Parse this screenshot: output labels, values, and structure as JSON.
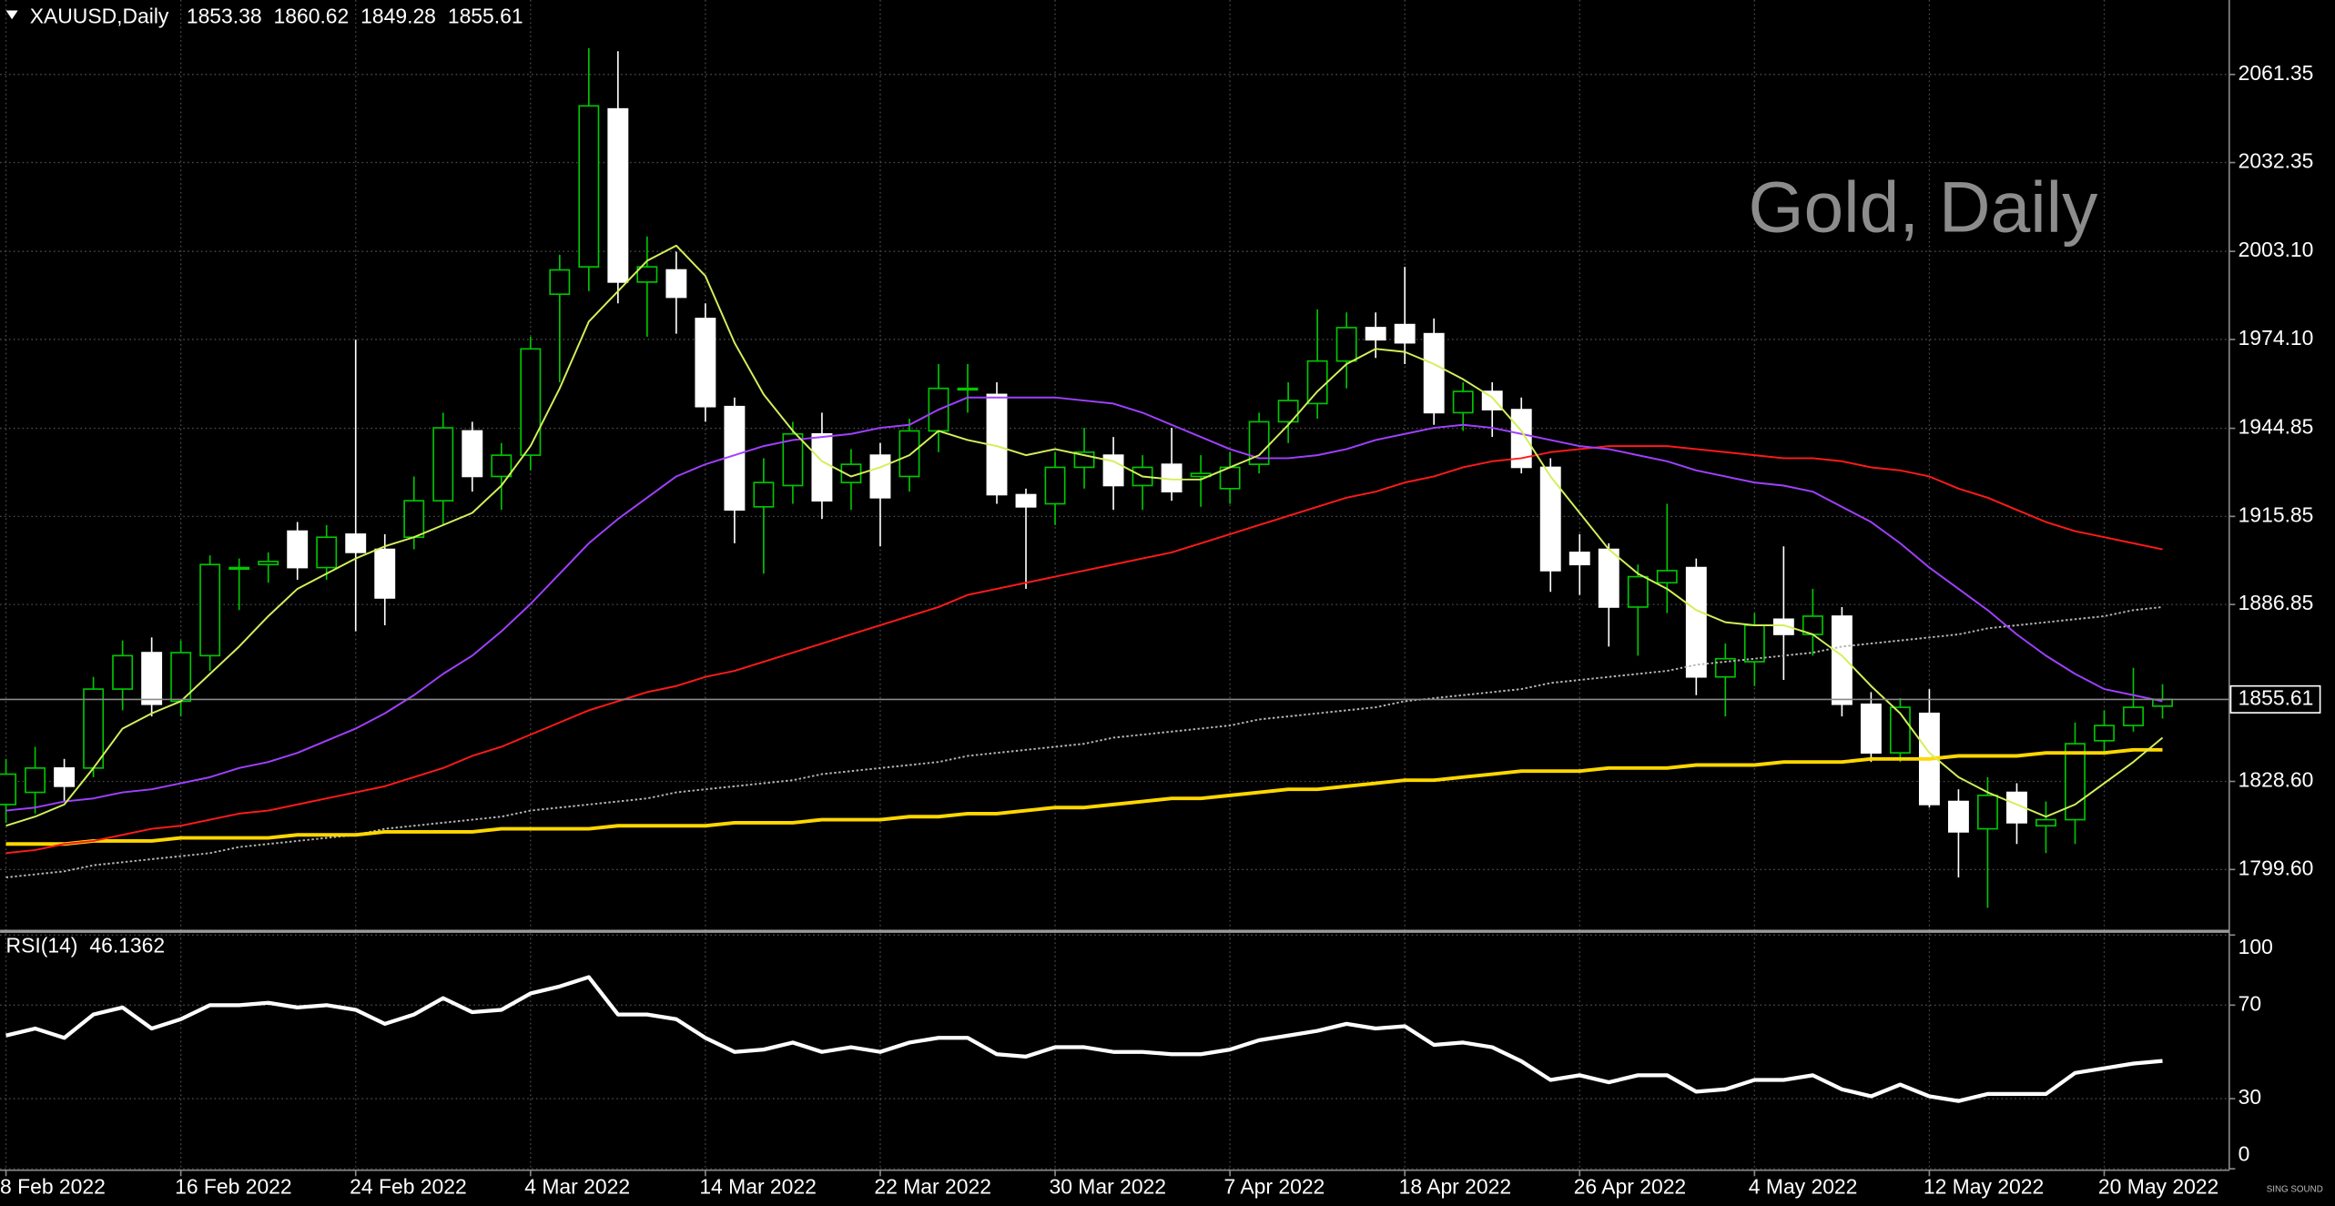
{
  "chart_data": [
    {
      "type": "candlestick",
      "symbol": "XAUUSD,Daily",
      "watermark": "Gold, Daily",
      "categories": [
        "8 Feb 2022",
        null,
        null,
        null,
        null,
        null,
        "16 Feb 2022",
        null,
        null,
        null,
        null,
        null,
        "24 Feb 2022",
        null,
        null,
        null,
        null,
        null,
        "4 Mar 2022",
        null,
        null,
        null,
        null,
        null,
        "14 Mar 2022",
        null,
        null,
        null,
        null,
        null,
        "22 Mar 2022",
        null,
        null,
        null,
        null,
        null,
        "30 Mar 2022",
        null,
        null,
        null,
        null,
        null,
        "7 Apr 2022",
        null,
        null,
        null,
        null,
        null,
        "18 Apr 2022",
        null,
        null,
        null,
        null,
        null,
        "26 Apr 2022",
        null,
        null,
        null,
        null,
        null,
        "4 May 2022",
        null,
        null,
        null,
        null,
        null,
        "12 May 2022",
        null,
        null,
        null,
        null,
        null,
        "20 May 2022",
        null,
        null
      ],
      "open": [
        1821,
        1825,
        1833,
        1833,
        1859,
        1871,
        1855,
        1870,
        1899,
        1900,
        1911,
        1899,
        1910,
        1905,
        1909,
        1921,
        1944,
        1929,
        1936,
        1989,
        1998,
        2050,
        1993,
        1997,
        1981,
        1952,
        1919,
        1926,
        1943,
        1927,
        1936,
        1929,
        1944,
        1958,
        1956,
        1923,
        1920,
        1932,
        1936,
        1926,
        1933,
        1929,
        1925,
        1933,
        1947,
        1953,
        1967,
        1978,
        1979,
        1976,
        1950,
        1957,
        1951,
        1932,
        1904,
        1905,
        1886,
        1894,
        1899,
        1863,
        1868,
        1882,
        1877,
        1883,
        1854,
        1838,
        1851,
        1822,
        1813,
        1825,
        1814,
        1816,
        1842,
        1847,
        1853.38
      ],
      "high": [
        1836,
        1840,
        1836,
        1863,
        1875,
        1876,
        1875,
        1903,
        1902,
        1904,
        1914,
        1913,
        1974,
        1910,
        1929,
        1950,
        1947,
        1940,
        1975,
        2002,
        2070,
        2069,
        2008,
        2003,
        1986,
        1955,
        1935,
        1947,
        1950,
        1938,
        1940,
        1948,
        1966,
        1966,
        1960,
        1925,
        1937,
        1945,
        1942,
        1936,
        1945,
        1936,
        1937,
        1950,
        1960,
        1984,
        1983,
        1983,
        1998,
        1981,
        1960,
        1960,
        1955,
        1935,
        1910,
        1907,
        1900,
        1920,
        1902,
        1874,
        1884,
        1906,
        1892,
        1886,
        1858,
        1856,
        1859,
        1826,
        1830,
        1828,
        1822,
        1848,
        1852,
        1866,
        1860.62
      ],
      "low": [
        1815,
        1818,
        1822,
        1830,
        1852,
        1850,
        1850,
        1865,
        1885,
        1894,
        1895,
        1895,
        1878,
        1880,
        1905,
        1913,
        1924,
        1918,
        1931,
        1960,
        1990,
        1986,
        1975,
        1976,
        1947,
        1907,
        1897,
        1920,
        1915,
        1918,
        1906,
        1924,
        1937,
        1950,
        1920,
        1892,
        1913,
        1925,
        1918,
        1918,
        1921,
        1919,
        1920,
        1930,
        1940,
        1948,
        1958,
        1968,
        1966,
        1946,
        1944,
        1942,
        1930,
        1891,
        1890,
        1873,
        1870,
        1884,
        1857,
        1850,
        1860,
        1862,
        1870,
        1850,
        1835,
        1835,
        1820,
        1797,
        1787,
        1808,
        1805,
        1808,
        1838,
        1845,
        1849.28
      ],
      "close": [
        1831,
        1833,
        1827,
        1859,
        1870,
        1854,
        1871,
        1900,
        1899,
        1901,
        1899,
        1909,
        1904,
        1889,
        1921,
        1945,
        1929,
        1936,
        1971,
        1997,
        2051,
        1993,
        1998,
        1988,
        1952,
        1918,
        1927,
        1943,
        1921,
        1933,
        1922,
        1944,
        1958,
        1958,
        1923,
        1919,
        1932,
        1937,
        1926,
        1932,
        1924,
        1930,
        1932,
        1947,
        1954,
        1967,
        1978,
        1974,
        1973,
        1950,
        1957,
        1951,
        1932,
        1898,
        1900,
        1886,
        1896,
        1898,
        1863,
        1869,
        1880,
        1877,
        1883,
        1854,
        1838,
        1853,
        1821,
        1812,
        1824,
        1815,
        1816,
        1841,
        1847,
        1853,
        1855.61
      ],
      "up_color": "#00c800",
      "down_color": "#ffffff",
      "ylim": [
        1779.5,
        2085.86
      ],
      "yticks": [
        2061.35,
        2032.35,
        {
          "value": 2003.1,
          "label": "2003.10"
        },
        {
          "value": 1974.1,
          "label": "1974.10"
        },
        1944.85,
        1915.85,
        1886.85,
        {
          "value": 1828.6,
          "label": "1828.60"
        },
        {
          "value": 1799.6,
          "label": "1799.60"
        }
      ],
      "grid": true,
      "series": [
        {
          "color": "#b4b4b4",
          "line_style": "dotted",
          "values": [
            1797,
            1798,
            1799,
            1801,
            1802,
            1803,
            1804,
            1805,
            1807,
            1808,
            1809,
            1810,
            1811,
            1813,
            1814,
            1815,
            1816,
            1817,
            1819,
            1820,
            1821,
            1822,
            1823,
            1825,
            1826,
            1827,
            1828,
            1829,
            1831,
            1832,
            1833,
            1834,
            1835,
            1837,
            1838,
            1839,
            1840,
            1841,
            1843,
            1844,
            1845,
            1846,
            1847,
            1849,
            1850,
            1851,
            1852,
            1853,
            1855,
            1856,
            1857,
            1858,
            1859,
            1861,
            1862,
            1863,
            1864,
            1865,
            1867,
            1868,
            1869,
            1870,
            1871,
            1873,
            1874,
            1875,
            1876,
            1877,
            1879,
            1880,
            1881,
            1882,
            1883,
            1885,
            1886
          ]
        },
        {
          "color": "#ffd700",
          "line_style": "thick",
          "values": [
            1808,
            1808,
            1808,
            1809,
            1809,
            1809,
            1810,
            1810,
            1810,
            1810,
            1811,
            1811,
            1811,
            1812,
            1812,
            1812,
            1812,
            1813,
            1813,
            1813,
            1813,
            1814,
            1814,
            1814,
            1814,
            1815,
            1815,
            1815,
            1816,
            1816,
            1816,
            1817,
            1817,
            1818,
            1818,
            1819,
            1820,
            1820,
            1821,
            1822,
            1823,
            1823,
            1824,
            1825,
            1826,
            1826,
            1827,
            1828,
            1829,
            1829,
            1830,
            1831,
            1832,
            1832,
            1832,
            1833,
            1833,
            1833,
            1834,
            1834,
            1834,
            1835,
            1835,
            1835,
            1836,
            1836,
            1836,
            1837,
            1837,
            1837,
            1838,
            1838,
            1838,
            1839,
            1839
          ]
        },
        {
          "color": "#ff1a1a",
          "line_style": "solid",
          "values": [
            1805,
            1806,
            1808,
            1809,
            1811,
            1813,
            1814,
            1816,
            1818,
            1819,
            1821,
            1823,
            1825,
            1827,
            1830,
            1833,
            1837,
            1840,
            1844,
            1848,
            1852,
            1855,
            1858,
            1860,
            1863,
            1865,
            1868,
            1871,
            1874,
            1877,
            1880,
            1883,
            1886,
            1890,
            1892,
            1894,
            1896,
            1898,
            1900,
            1902,
            1904,
            1907,
            1910,
            1913,
            1916,
            1919,
            1922,
            1924,
            1927,
            1929,
            1932,
            1934,
            1935,
            1937,
            1938,
            1939,
            1939,
            1939,
            1938,
            1937,
            1936,
            1935,
            1935,
            1934,
            1932,
            1931,
            1929,
            1925,
            1922,
            1918,
            1914,
            1911,
            1909,
            1907,
            1905
          ]
        },
        {
          "color": "#a040ff",
          "line_style": "solid",
          "values": [
            1819,
            1820,
            1822,
            1823,
            1825,
            1826,
            1828,
            1830,
            1833,
            1835,
            1838,
            1842,
            1846,
            1851,
            1857,
            1864,
            1870,
            1878,
            1887,
            1897,
            1907,
            1915,
            1922,
            1929,
            1933,
            1936,
            1939,
            1941,
            1942,
            1943,
            1945,
            1946,
            1951,
            1955,
            1955,
            1955,
            1955,
            1954,
            1953,
            1950,
            1946,
            1942,
            1938,
            1935,
            1935,
            1936,
            1938,
            1941,
            1943,
            1945,
            1946,
            1945,
            1943,
            1941,
            1939,
            1938,
            1936,
            1934,
            1931,
            1929,
            1927,
            1926,
            1924,
            1919,
            1914,
            1907,
            1899,
            1892,
            1885,
            1877,
            1870,
            1864,
            1859,
            1857,
            1855
          ]
        },
        {
          "color": "#d2f05a",
          "line_style": "solid",
          "values": [
            1814,
            1817,
            1821,
            1833,
            1846,
            1851,
            1855,
            1864,
            1873,
            1883,
            1892,
            1897,
            1902,
            1906,
            1909,
            1913,
            1917,
            1926,
            1939,
            1958,
            1980,
            1990,
            2000,
            2005,
            1995,
            1973,
            1956,
            1944,
            1934,
            1929,
            1932,
            1936,
            1944,
            1941,
            1939,
            1936,
            1938,
            1936,
            1934,
            1929,
            1928,
            1928,
            1932,
            1936,
            1946,
            1957,
            1966,
            1971,
            1970,
            1966,
            1961,
            1955,
            1944,
            1929,
            1917,
            1905,
            1897,
            1892,
            1885,
            1881,
            1880,
            1880,
            1877,
            1870,
            1860,
            1851,
            1838,
            1830,
            1825,
            1821,
            1817,
            1821,
            1828,
            1835,
            1843
          ]
        }
      ],
      "logo": "SING SOUND"
    },
    {
      "type": "line",
      "title": "RSI(14)",
      "color": "#ffffff",
      "values": [
        57,
        60,
        56,
        66,
        69,
        60,
        64,
        70,
        70,
        71,
        69,
        70,
        68,
        62,
        66,
        73,
        67,
        68,
        75,
        78,
        82,
        66,
        66,
        64,
        56,
        50,
        51,
        54,
        50,
        52,
        50,
        54,
        56,
        56,
        49,
        48,
        52,
        52,
        50,
        50,
        49,
        49,
        51,
        55,
        57,
        59,
        62,
        60,
        61,
        53,
        54,
        52,
        46,
        38,
        40,
        37,
        40,
        40,
        33,
        34,
        38,
        38,
        40,
        34,
        31,
        36,
        31,
        29,
        32,
        32,
        32,
        41,
        43,
        45,
        46.1362
      ],
      "ylim": [
        0,
        100
      ],
      "yticks": [
        100,
        70,
        30,
        0
      ],
      "grid": true
    }
  ]
}
